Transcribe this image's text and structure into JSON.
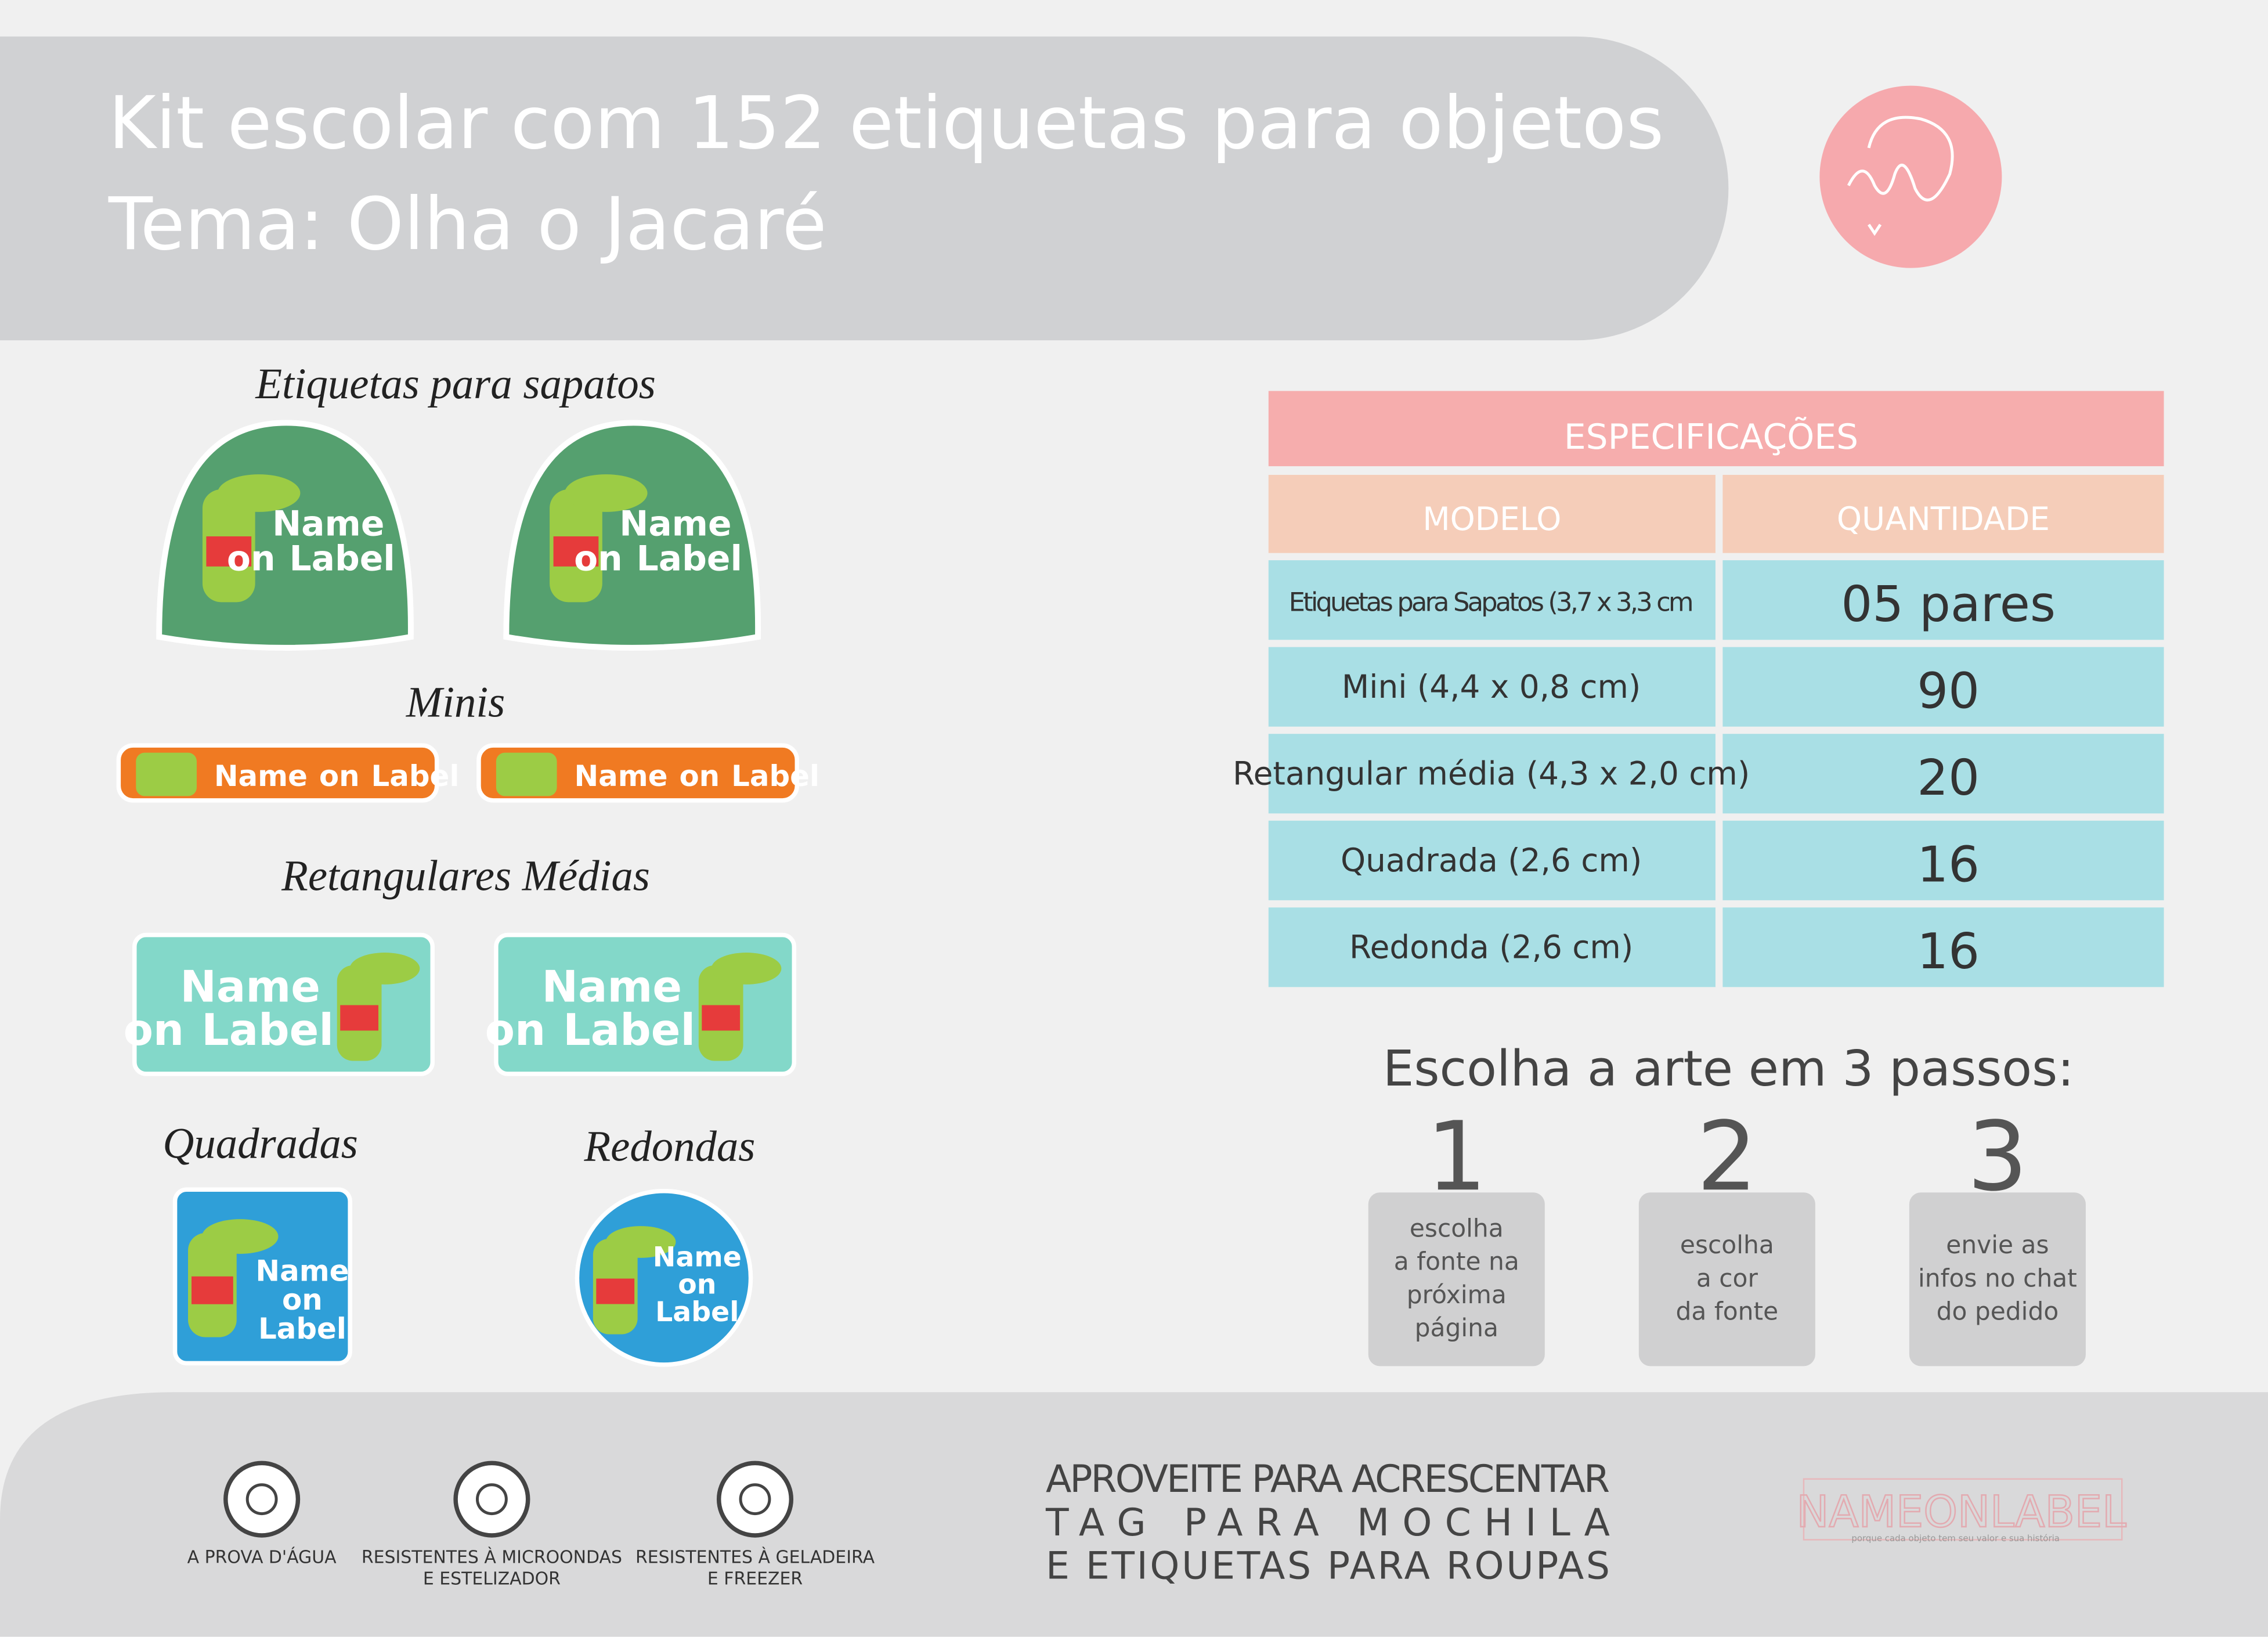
{
  "header": {
    "title_line1": "Kit escolar com 152 etiquetas para objetos",
    "title_line2": "Tema: Olha o Jacaré"
  },
  "sample_label": {
    "line1": "Name",
    "line2": "on",
    "line3": "Label"
  },
  "sections": {
    "shoes": "Etiquetas para sapatos",
    "minis": "Minis",
    "medium": "Retangulares Médias",
    "square": "Quadradas",
    "round": "Redondas"
  },
  "table": {
    "title": "ESPECIFICAÇÕES",
    "columns": [
      "MODELO",
      "QUANTIDADE"
    ],
    "rows": [
      [
        "Etiquetas para Sapatos (3,7 x 3,3 cm",
        "05 pares"
      ],
      [
        "Mini (4,4 x 0,8 cm)",
        "90"
      ],
      [
        "Retangular média (4,3 x 2,0 cm)",
        "20"
      ],
      [
        "Quadrada (2,6 cm)",
        "16"
      ],
      [
        "Redonda (2,6 cm)",
        "16"
      ]
    ]
  },
  "steps": {
    "title": "Escolha a arte em 3 passos:",
    "items": [
      {
        "number": "1",
        "lines": [
          "escolha",
          "a fonte na",
          "próxima",
          "página"
        ]
      },
      {
        "number": "2",
        "lines": [
          "escolha",
          "a cor",
          "da fonte"
        ]
      },
      {
        "number": "3",
        "lines": [
          "envie as",
          "infos no chat",
          "do pedido"
        ]
      }
    ]
  },
  "features": [
    {
      "lines": [
        "A PROVA D'ÁGUA"
      ]
    },
    {
      "lines": [
        "RESISTENTES À MICROONDAS",
        "E ESTELIZADOR"
      ]
    },
    {
      "lines": [
        "RESISTENTES À GELADEIRA",
        "E FREEZER"
      ]
    }
  ],
  "promo": [
    "APROVEITE PARA ACRESCENTAR",
    "TAG PARA MOCHILA",
    "E ETIQUETAS PARA ROUPAS"
  ],
  "brand": {
    "name": "NAMEONLABEL",
    "tagline": "porque cada objeto tem seu valor e sua história"
  }
}
